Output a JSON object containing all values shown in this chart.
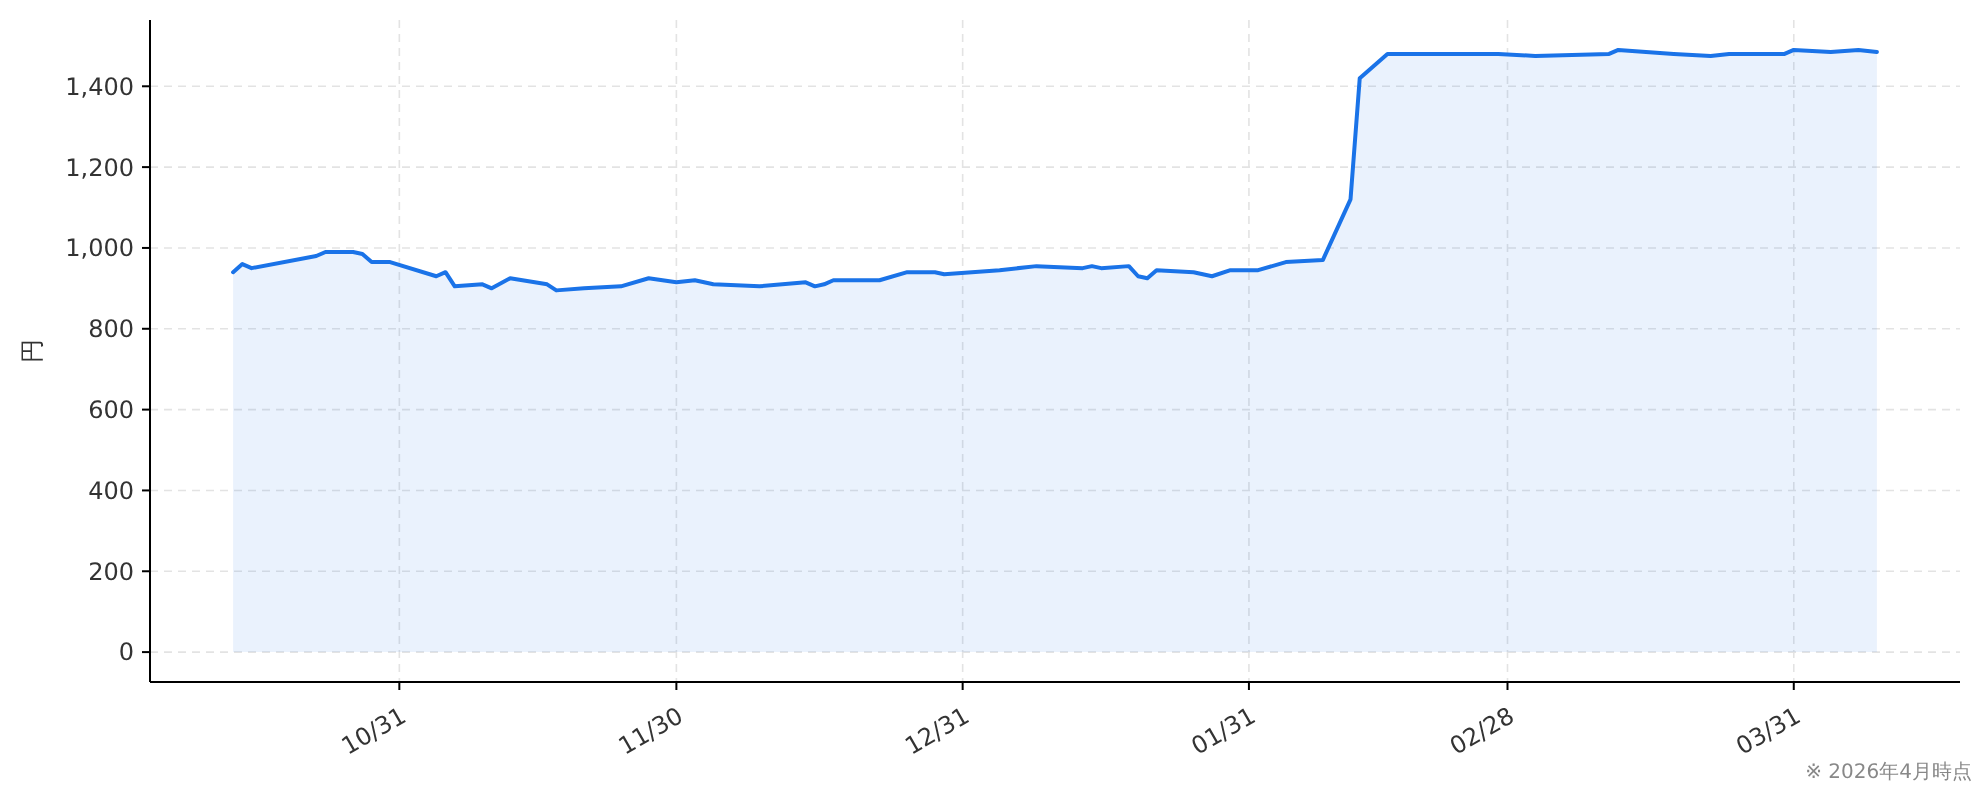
{
  "chart_data": {
    "type": "area",
    "ylabel": "円",
    "annotations": [
      "※ 2026年4月時点"
    ],
    "x": [
      "2025-10-13",
      "2025-10-14",
      "2025-10-15",
      "2025-10-22",
      "2025-10-23",
      "2025-10-26",
      "2025-10-27",
      "2025-10-28",
      "2025-10-30",
      "2025-11-04",
      "2025-11-05",
      "2025-11-06",
      "2025-11-09",
      "2025-11-10",
      "2025-11-12",
      "2025-11-16",
      "2025-11-17",
      "2025-11-20",
      "2025-11-24",
      "2025-11-27",
      "2025-11-30",
      "2025-12-02",
      "2025-12-04",
      "2025-12-09",
      "2025-12-14",
      "2025-12-15",
      "2025-12-16",
      "2025-12-17",
      "2025-12-22",
      "2025-12-25",
      "2025-12-28",
      "2025-12-29",
      "2026-01-04",
      "2026-01-08",
      "2026-01-13",
      "2026-01-14",
      "2026-01-15",
      "2026-01-18",
      "2026-01-19",
      "2026-01-20",
      "2026-01-21",
      "2026-01-25",
      "2026-01-27",
      "2026-01-29",
      "2026-02-01",
      "2026-02-04",
      "2026-02-08",
      "2026-02-11",
      "2026-02-12",
      "2026-02-15",
      "2026-02-27",
      "2026-03-03",
      "2026-03-11",
      "2026-03-12",
      "2026-03-15",
      "2026-03-18",
      "2026-03-22",
      "2026-03-24",
      "2026-03-30",
      "2026-03-31",
      "2026-04-04",
      "2026-04-07",
      "2026-04-09"
    ],
    "series": [
      {
        "color": "#1a73e8",
        "values": [
          940,
          960,
          950,
          980,
          990,
          990,
          985,
          965,
          965,
          930,
          940,
          905,
          910,
          900,
          925,
          910,
          895,
          900,
          905,
          925,
          915,
          920,
          910,
          905,
          915,
          905,
          910,
          920,
          920,
          940,
          940,
          935,
          945,
          955,
          950,
          955,
          950,
          955,
          930,
          925,
          945,
          940,
          930,
          945,
          945,
          965,
          970,
          1120,
          1420,
          1480,
          1480,
          1475,
          1480,
          1490,
          1485,
          1480,
          1475,
          1480,
          1480,
          1490,
          1485,
          1490,
          1485
        ]
      }
    ],
    "xlim": [
      "2025-10-04",
      "2026-04-18"
    ],
    "ylim": [
      -74,
      1564
    ],
    "xticks": [
      {
        "value": "2025-10-31",
        "label": "10/31"
      },
      {
        "value": "2025-11-30",
        "label": "11/30"
      },
      {
        "value": "2025-12-31",
        "label": "12/31"
      },
      {
        "value": "2026-01-31",
        "label": "01/31"
      },
      {
        "value": "2026-02-28",
        "label": "02/28"
      },
      {
        "value": "2026-03-31",
        "label": "03/31"
      }
    ],
    "yticks": [
      0,
      200,
      400,
      600,
      800,
      {
        "value": 1000,
        "label": "1,000"
      },
      {
        "value": 1200,
        "label": "1,200"
      },
      {
        "value": 1400,
        "label": "1,400"
      }
    ],
    "grid": true
  }
}
